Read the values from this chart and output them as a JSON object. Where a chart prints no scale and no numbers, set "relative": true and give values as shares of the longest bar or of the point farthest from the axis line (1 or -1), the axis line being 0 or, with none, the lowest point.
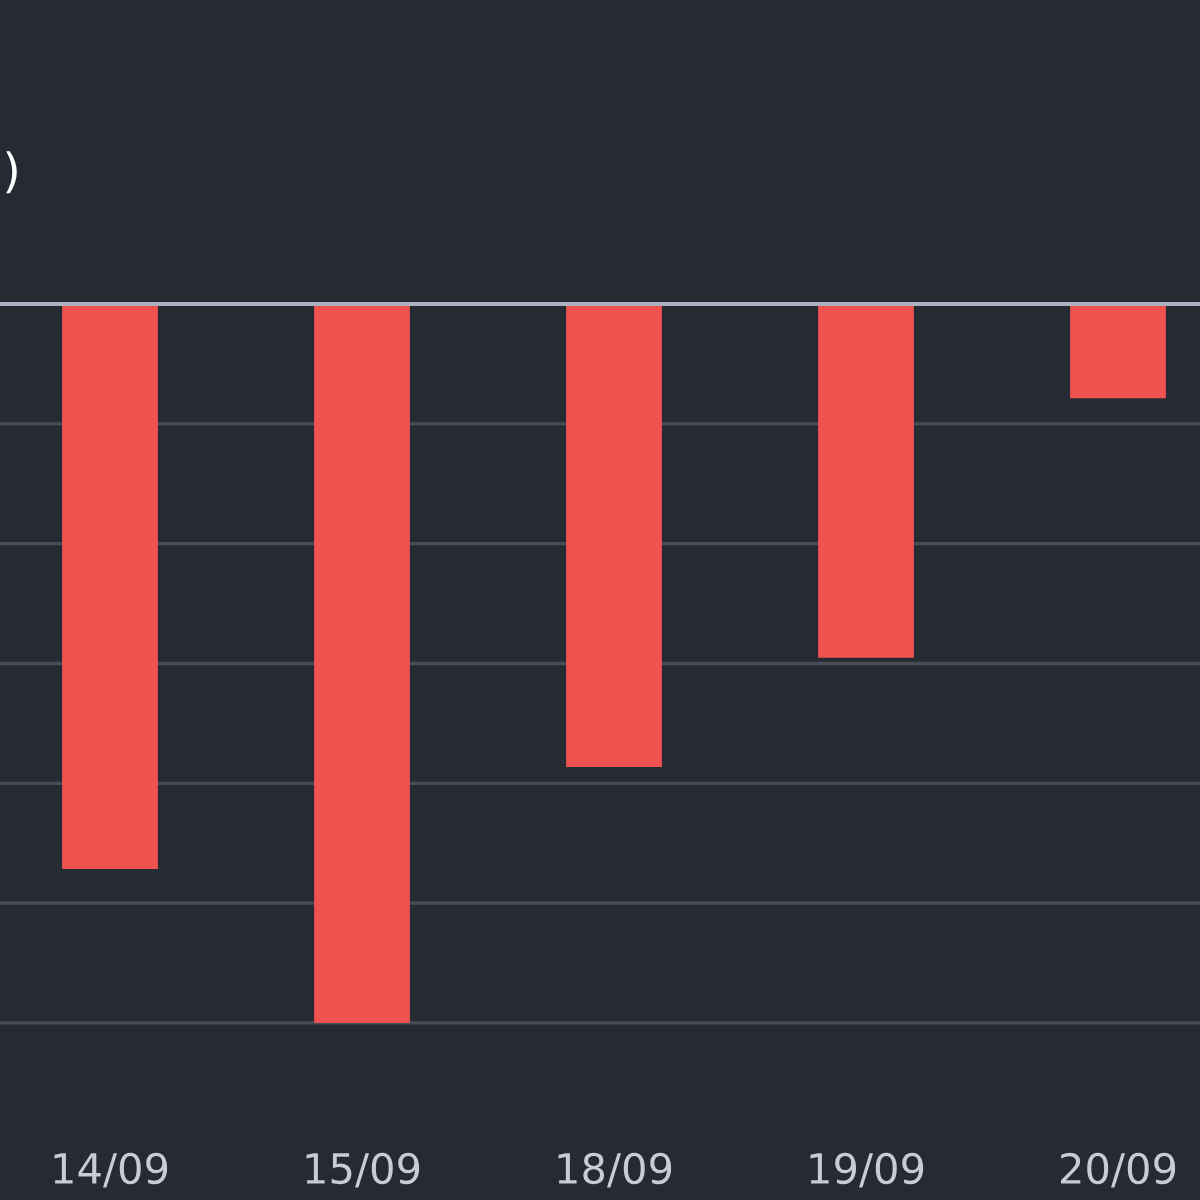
{
  "chart_data": {
    "type": "bar",
    "title": ")",
    "relative": true,
    "grid": "y",
    "color": "#ef5350",
    "categories": [
      "14/09",
      "15/09",
      "18/09",
      "19/09",
      "20/09"
    ],
    "values": [
      -0.786,
      -1,
      -0.644,
      -0.492,
      -0.131
    ]
  }
}
